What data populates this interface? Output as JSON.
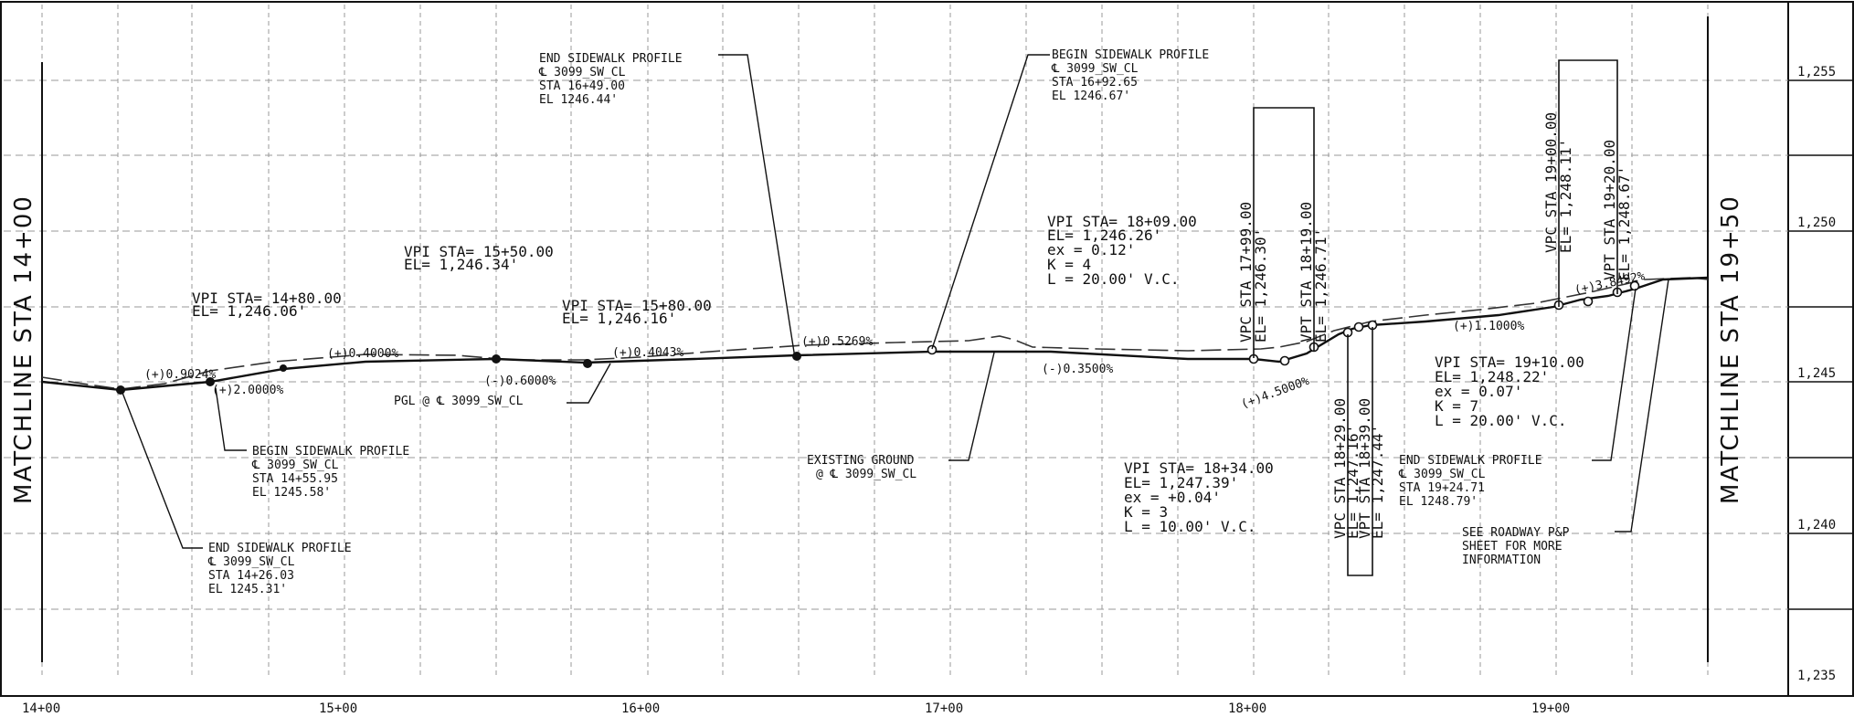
{
  "matchlines": {
    "left": "MATCHLINE STA 14+00",
    "right": "MATCHLINE STA 19+50"
  },
  "stations": [
    "14+00",
    "15+00",
    "16+00",
    "17+00",
    "18+00",
    "19+00"
  ],
  "elevations": [
    "1,255",
    "1,250",
    "1,245",
    "1,240",
    "1,235"
  ],
  "grades": {
    "g1": "(+)0.9024%",
    "g2": "(+)2.0000%",
    "g3": "(+)0.4000%",
    "g4": "(-)0.6000%",
    "g5": "(+)0.4043%",
    "g6": "(+)0.5269%",
    "g7": "(-)0.3500%",
    "g8": "(+)4.5000%",
    "g9": "(+)1.1000%",
    "g10": "(+)3.8492%"
  },
  "notes": {
    "vpi1480": [
      "VPI STA= 14+80.00",
      "EL= 1,246.06'"
    ],
    "vpi1550": [
      "VPI STA= 15+50.00",
      "EL= 1,246.34'"
    ],
    "vpi1580": [
      "VPI STA= 15+80.00",
      "EL= 1,246.16'"
    ],
    "vpi1809": [
      "VPI STA= 18+09.00",
      "EL= 1,246.26'",
      "ex = 0.12'",
      "K = 4",
      "L = 20.00' V.C."
    ],
    "vpi1834": [
      "VPI STA= 18+34.00",
      "EL= 1,247.39'",
      "ex = +0.04'",
      "K = 3",
      "L = 10.00' V.C."
    ],
    "vpi1910": [
      "VPI STA= 19+10.00",
      "EL= 1,248.22'",
      "ex = 0.07'",
      "K = 7",
      "L = 20.00' V.C."
    ],
    "endsw1649": [
      "END SIDEWALK PROFILE",
      "℄ 3099_SW_CL",
      "STA 16+49.00",
      "EL 1246.44'"
    ],
    "beginsw1692": [
      "BEGIN SIDEWALK PROFILE",
      "℄ 3099_SW_CL",
      "STA 16+92.65",
      "EL 1246.67'"
    ],
    "beginsw1455": [
      "BEGIN SIDEWALK PROFILE",
      "℄ 3099_SW_CL",
      "STA 14+55.95",
      "EL 1245.58'"
    ],
    "endsw1426": [
      "END SIDEWALK PROFILE",
      "℄ 3099_SW_CL",
      "STA 14+26.03",
      "EL 1245.31'"
    ],
    "endsw1924": [
      "END SIDEWALK PROFILE",
      "℄ 3099_SW_CL",
      "STA 19+24.71",
      "EL 1248.79'"
    ],
    "seeroadway": [
      "SEE ROADWAY P&P",
      "SHEET FOR MORE",
      "INFORMATION"
    ],
    "pgl": "PGL @ ℄ 3099_SW_CL",
    "existing": [
      "EXISTING GROUND",
      "@ ℄ 3099_SW_CL"
    ]
  },
  "vertical_labels": {
    "vpc1799": [
      "VPC STA 17+99.00",
      "EL= 1,246.30'"
    ],
    "vpt1819": [
      "VPT STA 18+19.00",
      "EL= 1,246.71'"
    ],
    "vpc1829": [
      "VPC STA 18+29.00",
      "EL= 1,247.16'"
    ],
    "vpt1839": [
      "VPT STA 18+39.00",
      "EL= 1,247.44'"
    ],
    "vpc1900": [
      "VPC STA 19+00.00",
      "EL= 1,248.11'"
    ],
    "vpt1920": [
      "VPT STA 19+20.00",
      "EL= 1,248.67'"
    ]
  }
}
